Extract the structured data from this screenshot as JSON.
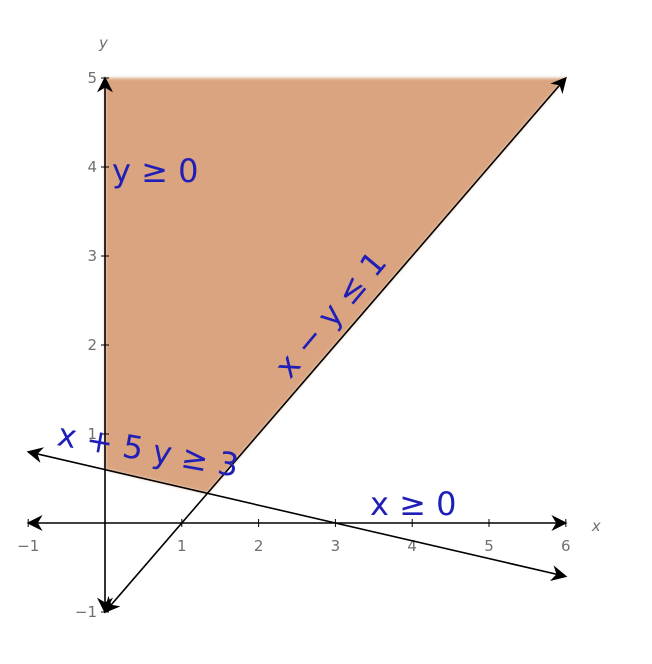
{
  "chart_data": {
    "type": "area",
    "xlabel": "x",
    "ylabel": "y",
    "xlim": [
      -1,
      6
    ],
    "ylim": [
      -1,
      5
    ],
    "x_ticks": [
      "−1",
      "1",
      "2",
      "3",
      "4",
      "5",
      "6"
    ],
    "y_ticks": [
      "−1",
      "1",
      "2",
      "3",
      "4",
      "5"
    ],
    "x_tick_values": [
      -1,
      1,
      2,
      3,
      4,
      5,
      6
    ],
    "y_tick_values": [
      -1,
      1,
      2,
      3,
      4,
      5
    ],
    "feasible_region": {
      "fill_color": "#d9a47f",
      "vertices": [
        [
          0,
          5
        ],
        [
          6,
          5
        ],
        [
          1.333,
          0.333
        ],
        [
          0,
          0.6
        ]
      ]
    },
    "lines": [
      {
        "label": "x − y ≤ 1",
        "from": [
          0,
          -1
        ],
        "to": [
          6,
          5
        ]
      },
      {
        "label": "x + 5 y ≥ 3",
        "from": [
          -1,
          0.8
        ],
        "to": [
          6,
          -0.6
        ]
      },
      {
        "label": "x ≥ 0",
        "from": [
          0,
          -1
        ],
        "to": [
          0,
          5
        ]
      }
    ],
    "annotations": {
      "y_ge_0": "y ≥ 0",
      "x_minus_y": "x − y ≤ 1",
      "x_plus_5y": "x + 5 y ≥ 3",
      "x_ge_0": "x ≥ 0"
    },
    "colors": {
      "line": "#000000",
      "label": "#1f1fb8",
      "tick": "#6f6f6f"
    }
  }
}
